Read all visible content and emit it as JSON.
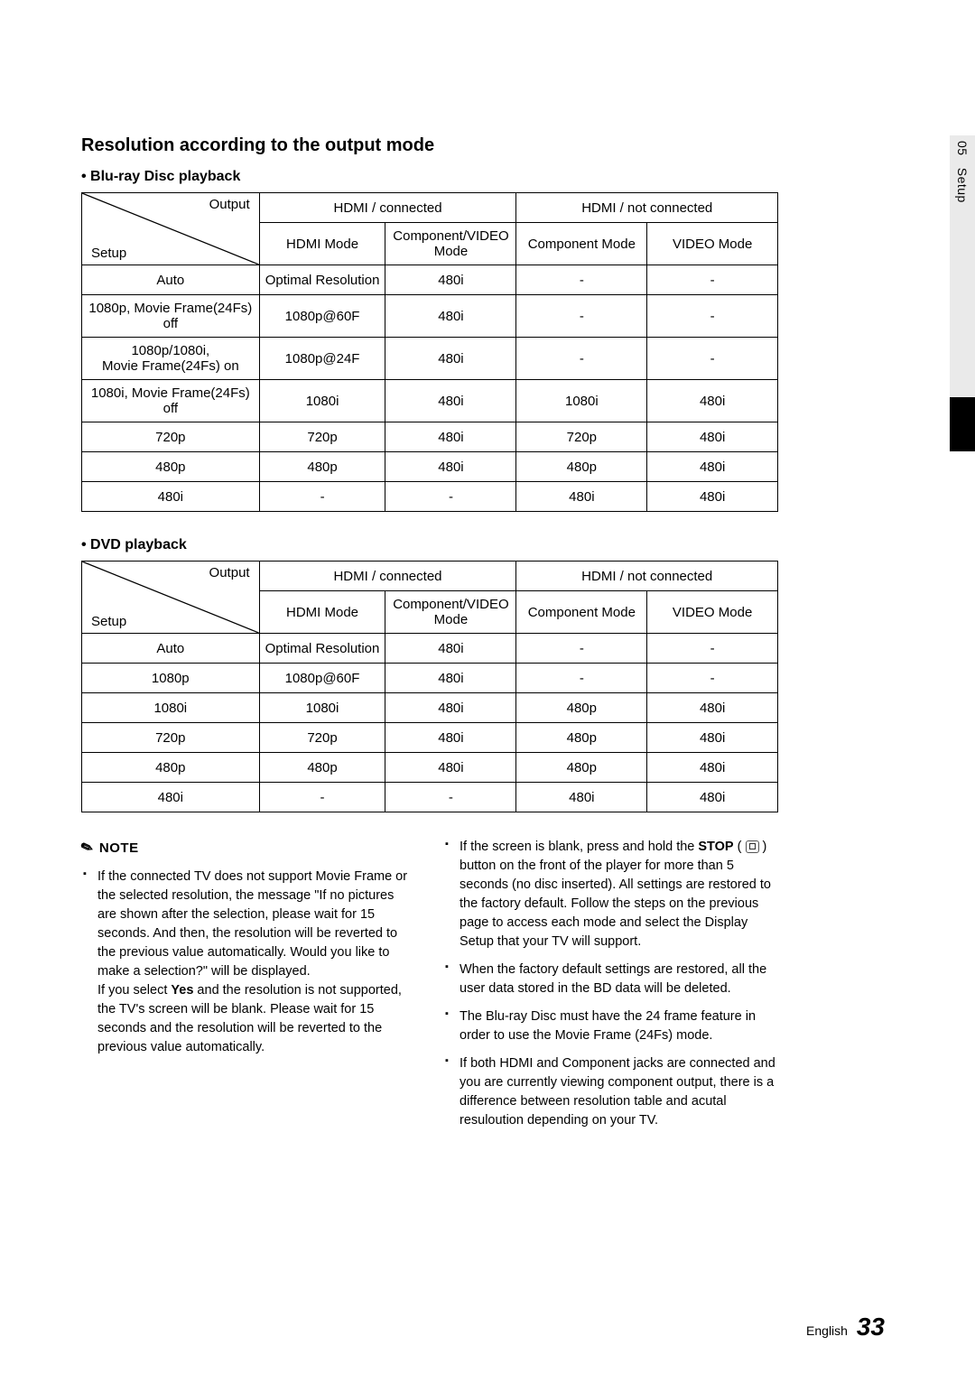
{
  "side": {
    "chapter": "05",
    "title": "Setup"
  },
  "heading": "Resolution according to the output mode",
  "tables": {
    "bluray": {
      "title": "• Blu-ray Disc playback",
      "diag": {
        "output": "Output",
        "setup": "Setup"
      },
      "header_groups": [
        "HDMI / connected",
        "HDMI / not connected"
      ],
      "subheaders": [
        "HDMI Mode",
        "Component/VIDEO Mode",
        "Component Mode",
        "VIDEO Mode"
      ],
      "rows": [
        [
          "Auto",
          "Optimal Resolution",
          "480i",
          "-",
          "-"
        ],
        [
          "1080p, Movie Frame(24Fs) off",
          "1080p@60F",
          "480i",
          "-",
          "-"
        ],
        [
          "1080p/1080i,\nMovie Frame(24Fs) on",
          "1080p@24F",
          "480i",
          "-",
          "-"
        ],
        [
          "1080i, Movie Frame(24Fs) off",
          "1080i",
          "480i",
          "1080i",
          "480i"
        ],
        [
          "720p",
          "720p",
          "480i",
          "720p",
          "480i"
        ],
        [
          "480p",
          "480p",
          "480i",
          "480p",
          "480i"
        ],
        [
          "480i",
          "-",
          "-",
          "480i",
          "480i"
        ]
      ]
    },
    "dvd": {
      "title": "• DVD playback",
      "diag": {
        "output": "Output",
        "setup": "Setup"
      },
      "header_groups": [
        "HDMI / connected",
        "HDMI / not connected"
      ],
      "subheaders": [
        "HDMI Mode",
        "Component/VIDEO Mode",
        "Component Mode",
        "VIDEO Mode"
      ],
      "rows": [
        [
          "Auto",
          "Optimal Resolution",
          "480i",
          "-",
          "-"
        ],
        [
          "1080p",
          "1080p@60F",
          "480i",
          "-",
          "-"
        ],
        [
          "1080i",
          "1080i",
          "480i",
          "480p",
          "480i"
        ],
        [
          "720p",
          "720p",
          "480i",
          "480p",
          "480i"
        ],
        [
          "480p",
          "480p",
          "480i",
          "480p",
          "480i"
        ],
        [
          "480i",
          "-",
          "-",
          "480i",
          "480i"
        ]
      ]
    }
  },
  "note_label": "NOTE",
  "notes_left": [
    "If the connected TV does not support Movie Frame or the selected resolution, the message \"If no pictures are shown after the selection, please wait for 15 seconds. And then, the resolution will be reverted to the previous value automatically. Would you like to make a selection?\" will be displayed.\nIf you select <b>Yes</b> and the resolution is not supported, the TV's screen will be blank. Please wait for 15 seconds and the resolution will be reverted to the previous value automatically."
  ],
  "notes_right": [
    "If the screen is blank, press and hold the <b>STOP</b> ( <span class=\"stop-btn\"><span class=\"stop-glyph\"></span></span> ) button on the front of the player for more than 5 seconds (no disc inserted). All settings are restored to the factory default. Follow the steps on the previous page to access each mode and select the Display Setup that your TV will support.",
    "When the factory default settings are restored, all the user data stored in the BD data will be deleted.",
    "The Blu-ray Disc must have the 24 frame feature in order to use the Movie Frame (24Fs) mode.",
    "If both HDMI and Component jacks are connected and you are currently viewing component output, there is a difference between resolution table and acutal resuloution depending on your TV."
  ],
  "footer": {
    "lang": "English",
    "page": "33"
  }
}
